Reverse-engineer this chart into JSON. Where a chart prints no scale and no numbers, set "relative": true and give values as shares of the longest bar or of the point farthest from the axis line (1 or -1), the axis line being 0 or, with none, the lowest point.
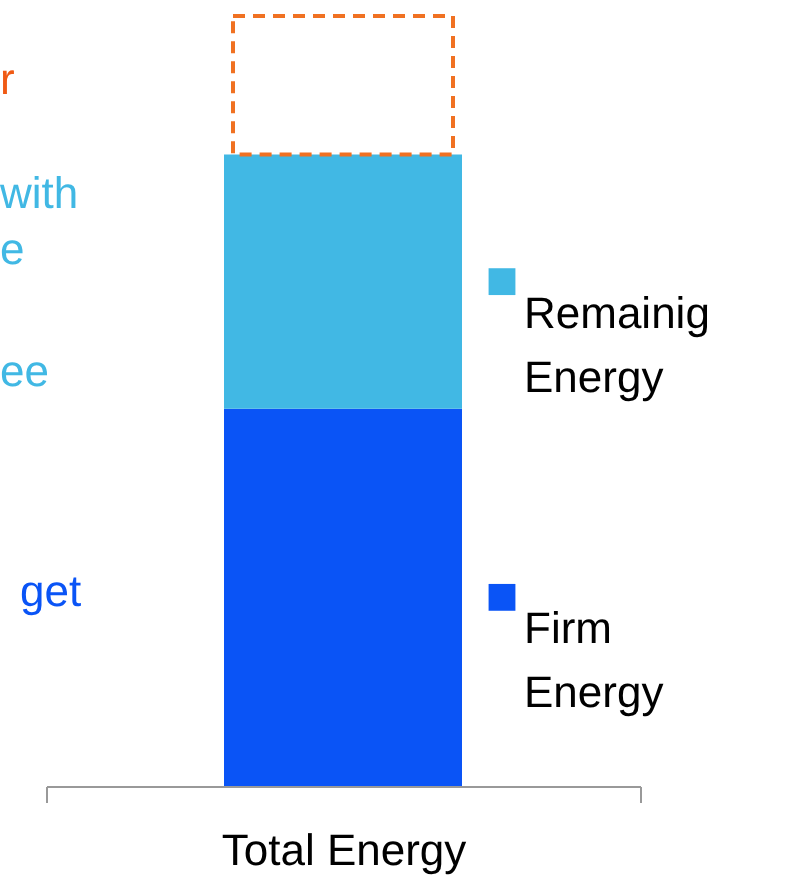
{
  "chart_data": {
    "type": "bar",
    "stacked": true,
    "relative": true,
    "categories": [
      "Total Energy"
    ],
    "series": [
      {
        "name": "Firm Energy",
        "color": "#0a54f6",
        "values": [
          0.49
        ]
      },
      {
        "name": "Remainig Energy",
        "color": "#41b8e4",
        "values": [
          0.33
        ]
      },
      {
        "color": "#f07122",
        "line_style": "dashed",
        "values": [
          0.18
        ]
      }
    ],
    "annotations": [
      "r",
      "with",
      "e",
      "ee",
      "get"
    ],
    "legend": "right"
  }
}
